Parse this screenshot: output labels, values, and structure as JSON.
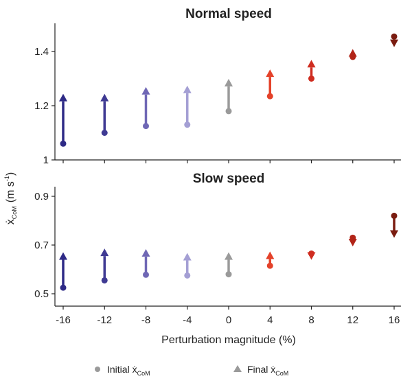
{
  "chart_data": {
    "type": "scatter",
    "xlabel": "Perturbation magnitude (%)",
    "ylabel_main": "ẋ",
    "ylabel_sub": "CoM",
    "ylabel_units": "(m s",
    "ylabel_exp": "-1",
    "ylabel_close": ")",
    "x_ticks": [
      -16,
      -12,
      -8,
      -4,
      0,
      4,
      8,
      12,
      16
    ],
    "x_tick_labels": [
      "-16",
      "-12",
      "-8",
      "-4",
      "0",
      "4",
      "8",
      "12",
      "16"
    ],
    "colors": [
      "#2e2a86",
      "#3f3a93",
      "#6f67b5",
      "#a49fd4",
      "#9a9a9a",
      "#e4422a",
      "#cf2d20",
      "#b22418",
      "#7a1c10"
    ],
    "legend": {
      "initial_main": "Initial ẋ",
      "initial_sub": "CoM",
      "final_main": "Final ẋ",
      "final_sub": "CoM",
      "marker_color": "#9a9a9a"
    },
    "panels": [
      {
        "title": "Normal speed",
        "ylim": [
          1.0,
          1.5
        ],
        "y_ticks": [
          1.0,
          1.2,
          1.4
        ],
        "y_tick_labels": [
          "1",
          "1.2",
          "1.4"
        ],
        "initial": [
          1.06,
          1.1,
          1.125,
          1.13,
          1.18,
          1.235,
          1.3,
          1.38,
          1.455
        ],
        "final": [
          1.23,
          1.23,
          1.255,
          1.26,
          1.285,
          1.32,
          1.355,
          1.395,
          1.43
        ]
      },
      {
        "title": "Slow speed",
        "ylim": [
          0.45,
          0.95
        ],
        "y_ticks": [
          0.5,
          0.7,
          0.9
        ],
        "y_tick_labels": [
          "0.5",
          "0.7",
          "0.9"
        ],
        "initial": [
          0.525,
          0.555,
          0.578,
          0.575,
          0.58,
          0.615,
          0.665,
          0.73,
          0.82
        ],
        "final": [
          0.655,
          0.67,
          0.668,
          0.652,
          0.655,
          0.658,
          0.655,
          0.71,
          0.745
        ]
      }
    ]
  }
}
